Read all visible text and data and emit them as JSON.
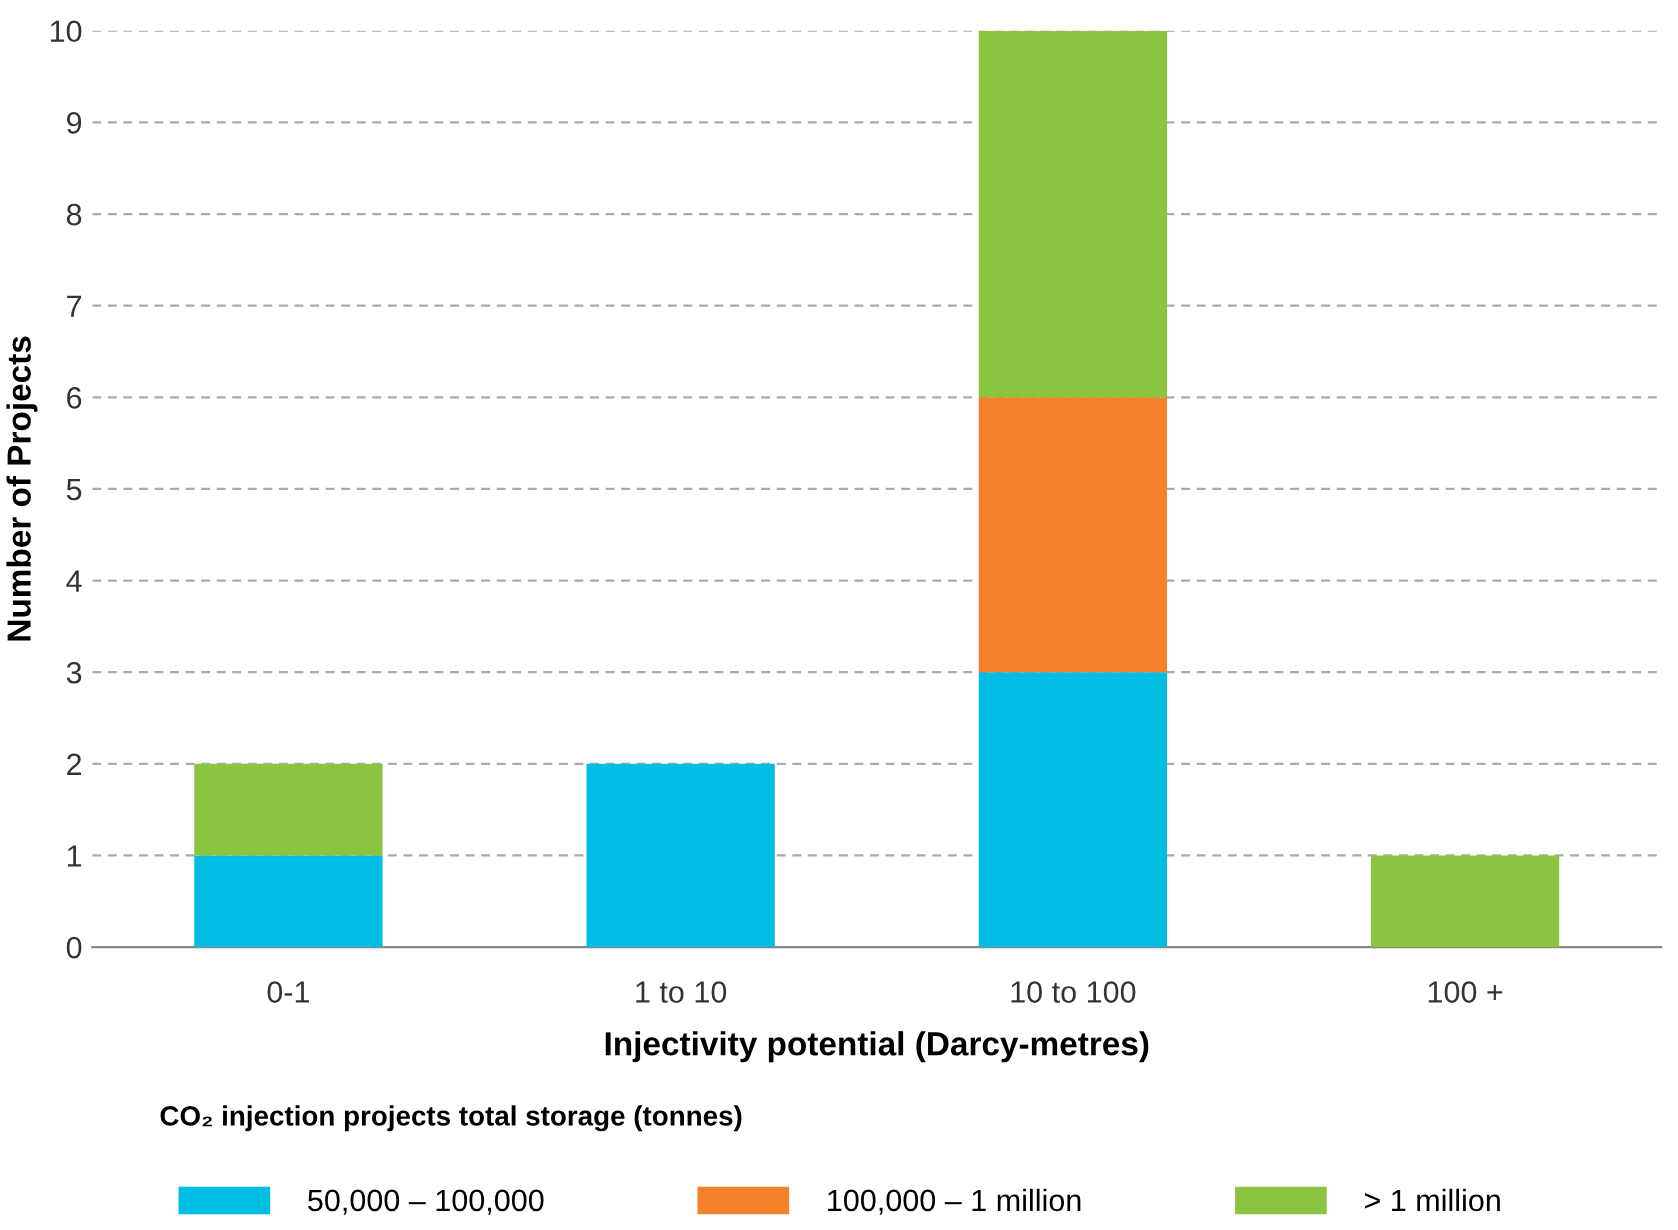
{
  "chart_data": {
    "type": "bar",
    "stacked": true,
    "xlabel": "Injectivity potential (Darcy-metres)",
    "ylabel": "Number of Projects",
    "legend_title": "CO₂ injection projects total storage (tonnes)",
    "legend": "bottom",
    "grid": "y",
    "categories": [
      "0-1",
      "1 to 10",
      "10 to 100",
      "100 +"
    ],
    "series": [
      {
        "name": "50,000 – 100,000",
        "color": "#00bde3",
        "values": [
          1,
          2,
          3,
          0
        ]
      },
      {
        "name": "100,000 – 1 million",
        "color": "#f3822a",
        "values": [
          0,
          0,
          3,
          0
        ]
      },
      {
        "name": "> 1 million",
        "color": "#8bc53f",
        "values": [
          1,
          0,
          4,
          1
        ]
      }
    ],
    "ylim": [
      0,
      10
    ],
    "yticks": [
      0,
      1,
      2,
      3,
      4,
      5,
      6,
      7,
      8,
      9,
      10
    ]
  }
}
